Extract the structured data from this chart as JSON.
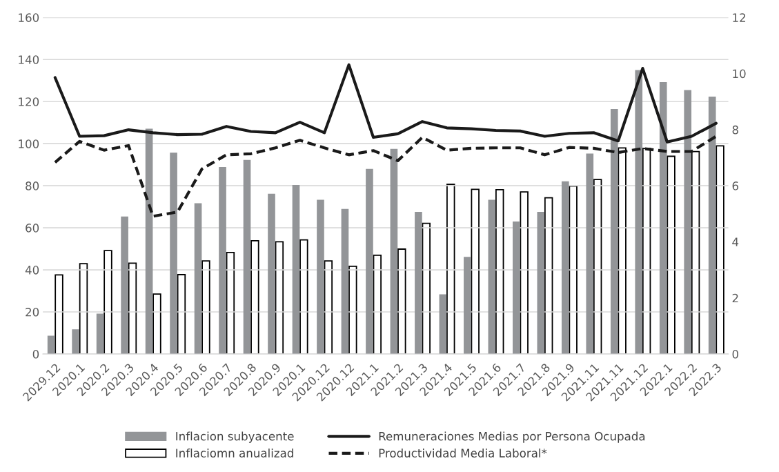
{
  "chart_data": {
    "type": "bar",
    "categories": [
      "2029.12",
      "2020.1",
      "2020.2",
      "2020.3",
      "2020.4",
      "2020.5",
      "2020.6",
      "2020.7",
      "2020.8",
      "2020.9",
      "2020.1",
      "2020.12",
      "2020.12",
      "2021.1",
      "2021.2",
      "2021.3",
      "2021.4",
      "2021.5",
      "2021.6",
      "2021.7",
      "2021.8",
      "2021.9",
      "2021.11",
      "2021.11",
      "2021.12",
      "2022.1",
      "2022.2",
      "2022.3"
    ],
    "series": [
      {
        "name": "Inflacion subyacente",
        "color": "#939598",
        "values": [
          8.7,
          11.7,
          19.2,
          65.4,
          107.1,
          95.7,
          71.7,
          88.9,
          92.3,
          76.2,
          80.4,
          73.3,
          69.0,
          88.0,
          97.5,
          67.6,
          28.4,
          46.2,
          73.3,
          63.0,
          67.6,
          82.1,
          95.3,
          116.5,
          135.0,
          129.3,
          125.5,
          122.4
        ]
      },
      {
        "name": "Inflaciomn anualizad",
        "axis": "y2",
        "color": "#ffffff",
        "values": [
          2.82,
          3.22,
          3.69,
          3.24,
          2.14,
          2.83,
          3.32,
          3.62,
          4.04,
          4.0,
          4.07,
          3.32,
          3.13,
          3.52,
          3.74,
          4.66,
          6.05,
          5.87,
          5.86,
          5.78,
          5.57,
          5.99,
          6.22,
          7.35,
          7.33,
          7.05,
          7.22,
          7.42
        ]
      },
      {
        "name": "Remuneraciones Medias por Persona Ocupada",
        "type": "line",
        "line_style": "solid",
        "color": "#1a1a1a",
        "values": [
          131.4,
          103.5,
          103.8,
          106.6,
          105.2,
          104.3,
          104.5,
          108.2,
          105.8,
          105.2,
          110.2,
          105.2,
          137.5,
          103.0,
          104.7,
          110.5,
          107.5,
          107.1,
          106.3,
          106.0,
          103.5,
          104.9,
          105.2,
          101.3,
          135.8,
          100.8,
          103.5,
          109.7
        ]
      },
      {
        "name": "Productividad Media Laboral*",
        "type": "line",
        "line_style": "dashed",
        "color": "#1a1a1a",
        "values": [
          91.1,
          101.1,
          96.9,
          99.1,
          65.5,
          67.5,
          88.0,
          94.7,
          95.2,
          98.0,
          101.6,
          98.0,
          94.7,
          96.7,
          91.9,
          103.0,
          96.9,
          97.8,
          98.0,
          98.0,
          94.7,
          98.2,
          97.8,
          95.8,
          97.7,
          96.3,
          96.3,
          103.5
        ]
      }
    ],
    "ylim": [
      0,
      160
    ],
    "yticks": [
      0,
      20,
      40,
      60,
      80,
      100,
      120,
      140,
      160
    ],
    "y2lim": [
      0,
      12
    ],
    "y2ticks": [
      0,
      2,
      4,
      6,
      8,
      10,
      12
    ],
    "grid": "y",
    "legend": "bottom"
  }
}
